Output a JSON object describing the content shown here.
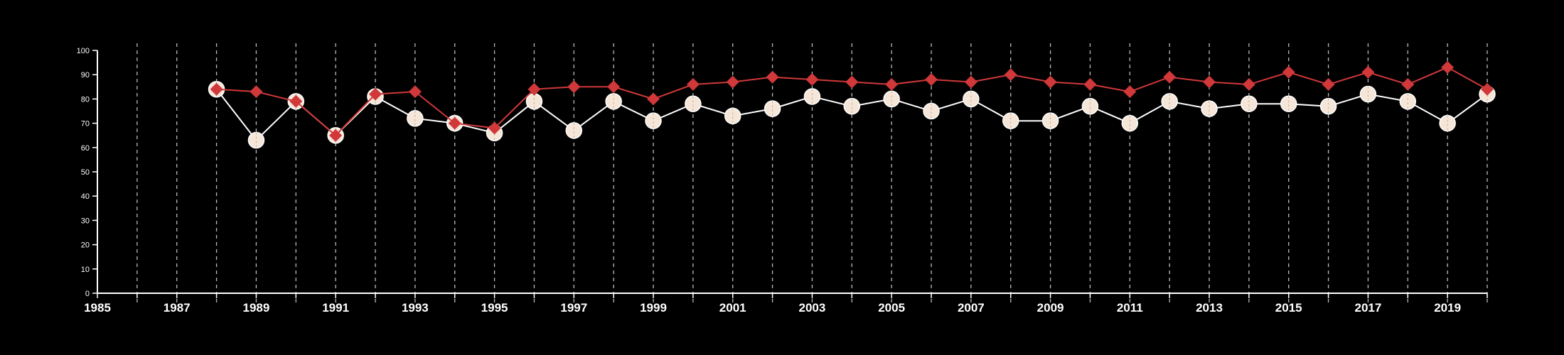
{
  "chart_data": {
    "type": "line",
    "title": "",
    "xlabel": "",
    "ylabel": "",
    "xlim": [
      1985,
      2020
    ],
    "ylim": [
      0,
      100
    ],
    "x_ticks": [
      1985,
      1987,
      1989,
      1991,
      1993,
      1995,
      1997,
      1999,
      2001,
      2003,
      2005,
      2007,
      2009,
      2011,
      2013,
      2015,
      2017,
      2019
    ],
    "y_ticks": [
      0,
      10,
      20,
      30,
      40,
      50,
      60,
      70,
      80,
      90,
      100
    ],
    "grid": "vertical dashed lines at every year",
    "legend": "none",
    "x": [
      1988,
      1989,
      1990,
      1991,
      1992,
      1993,
      1994,
      1995,
      1996,
      1997,
      1998,
      1999,
      2000,
      2001,
      2002,
      2003,
      2004,
      2005,
      2006,
      2007,
      2008,
      2009,
      2010,
      2011,
      2012,
      2013,
      2014,
      2015,
      2016,
      2017,
      2018,
      2019,
      2020
    ],
    "series": [
      {
        "marker": "diamond",
        "color": "#d0383a",
        "values": [
          84,
          83,
          79,
          65,
          82,
          83,
          70,
          68,
          84,
          85,
          85,
          80,
          86,
          87,
          89,
          88,
          87,
          86,
          88,
          87,
          90,
          87,
          86,
          83,
          89,
          87,
          86,
          91,
          86,
          91,
          86,
          93,
          84
        ]
      },
      {
        "marker": "circle",
        "color": "#f5e6d8",
        "values": [
          84,
          63,
          79,
          65,
          81,
          72,
          70,
          66,
          79,
          67,
          79,
          71,
          78,
          73,
          76,
          81,
          77,
          80,
          75,
          80,
          71,
          71,
          77,
          70,
          79,
          76,
          78,
          78,
          77,
          82,
          79,
          70,
          82
        ]
      }
    ]
  },
  "colors": {
    "background": "#000000",
    "axis": "#ffffff",
    "grid": "#bbbbbb",
    "series_line_light": "#ffffff"
  }
}
